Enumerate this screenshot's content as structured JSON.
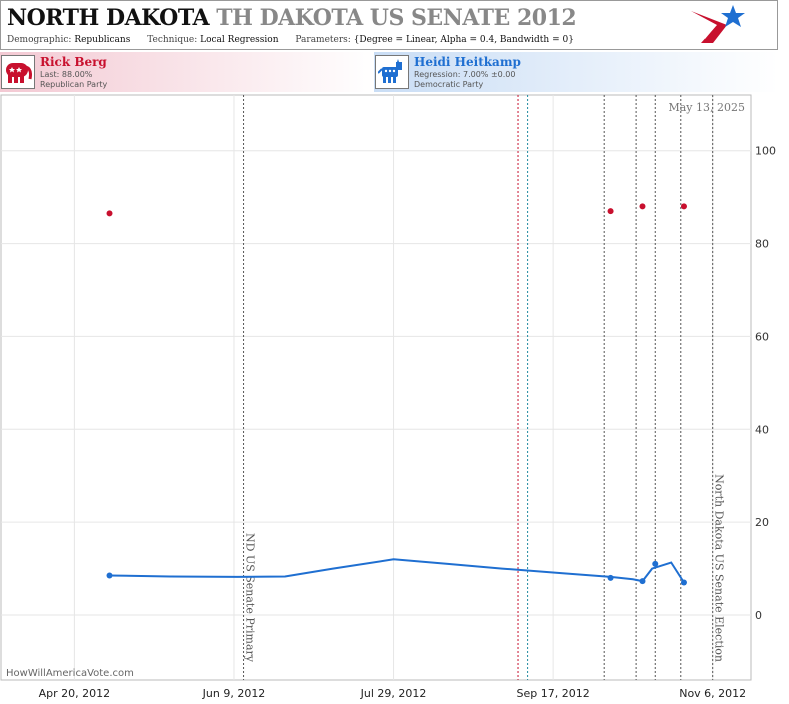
{
  "header": {
    "title_state": "NORTH DAKOTA",
    "title_race": "TH DAKOTA US SENATE 2012",
    "demographic_label": "Demographic:",
    "demographic_value": "Republicans",
    "technique_label": "Technique:",
    "technique_value": "Local Regression",
    "parameters_label": "Parameters:",
    "parameters_value": "{Degree = Linear, Alpha = 0.4, Bandwidth = 0}"
  },
  "candidates": {
    "rep": {
      "name": "Rick Berg",
      "line2": "Last: 88.00%",
      "line3": "Republican Party",
      "icon": "elephant-icon",
      "color": "#c8102e"
    },
    "dem": {
      "name": "Heidi Heitkamp",
      "line2": "Regression: 7.00% ±0.00",
      "line3": "Democratic Party",
      "icon": "donkey-icon",
      "color": "#1f6fd1"
    }
  },
  "date_stamp": "May 13, 2025",
  "credit": "HowWillAmericaVote.com",
  "chart_data": {
    "type": "scatter",
    "xlabel": "",
    "ylabel": "",
    "x_ticks": [
      "Apr 20, 2012",
      "Jun 9, 2012",
      "Jul 29, 2012",
      "Sep 17, 2012",
      "Nov 6, 2012"
    ],
    "xlim": [
      "2012-03-28",
      "2012-11-18"
    ],
    "y_ticks": [
      0,
      20,
      40,
      60,
      80,
      100
    ],
    "ylim": [
      -14,
      112
    ],
    "grid": true,
    "events": [
      {
        "date": "2012-06-12",
        "label": "ND US Senate Primary",
        "color": "#555555"
      },
      {
        "date": "2012-11-06",
        "label": "North Dakota US Senate Election",
        "color": "#555555"
      }
    ],
    "markers": [
      {
        "date": "2012-09-06",
        "color": "#c8102e"
      },
      {
        "date": "2012-09-09",
        "color": "#1f8aa0"
      },
      {
        "date": "2012-10-03",
        "color": "#555555"
      },
      {
        "date": "2012-10-13",
        "color": "#555555"
      },
      {
        "date": "2012-10-19",
        "color": "#555555"
      },
      {
        "date": "2012-10-27",
        "color": "#555555"
      }
    ],
    "series": [
      {
        "color": "#c8102e",
        "points": [
          {
            "x": "2012-05-01",
            "y": 86.5
          },
          {
            "x": "2012-10-05",
            "y": 87.0
          },
          {
            "x": "2012-10-15",
            "y": 88.0
          },
          {
            "x": "2012-10-28",
            "y": 88.0
          }
        ]
      },
      {
        "color": "#1f6fd1",
        "points": [
          {
            "x": "2012-05-01",
            "y": 8.5
          },
          {
            "x": "2012-10-05",
            "y": 8.0
          },
          {
            "x": "2012-10-15",
            "y": 7.3
          },
          {
            "x": "2012-10-19",
            "y": 11.0
          },
          {
            "x": "2012-10-28",
            "y": 7.0
          }
        ],
        "trend": [
          {
            "x": "2012-05-01",
            "y": 8.5
          },
          {
            "x": "2012-05-20",
            "y": 8.3
          },
          {
            "x": "2012-06-10",
            "y": 8.2
          },
          {
            "x": "2012-06-25",
            "y": 8.3
          },
          {
            "x": "2012-07-10",
            "y": 10.0
          },
          {
            "x": "2012-07-29",
            "y": 12.0
          },
          {
            "x": "2012-08-15",
            "y": 11.0
          },
          {
            "x": "2012-09-01",
            "y": 10.0
          },
          {
            "x": "2012-09-20",
            "y": 9.0
          },
          {
            "x": "2012-10-05",
            "y": 8.2
          },
          {
            "x": "2012-10-12",
            "y": 7.7
          },
          {
            "x": "2012-10-15",
            "y": 7.3
          },
          {
            "x": "2012-10-18",
            "y": 10.0
          },
          {
            "x": "2012-10-24",
            "y": 11.3
          },
          {
            "x": "2012-10-28",
            "y": 7.0
          }
        ]
      }
    ]
  }
}
